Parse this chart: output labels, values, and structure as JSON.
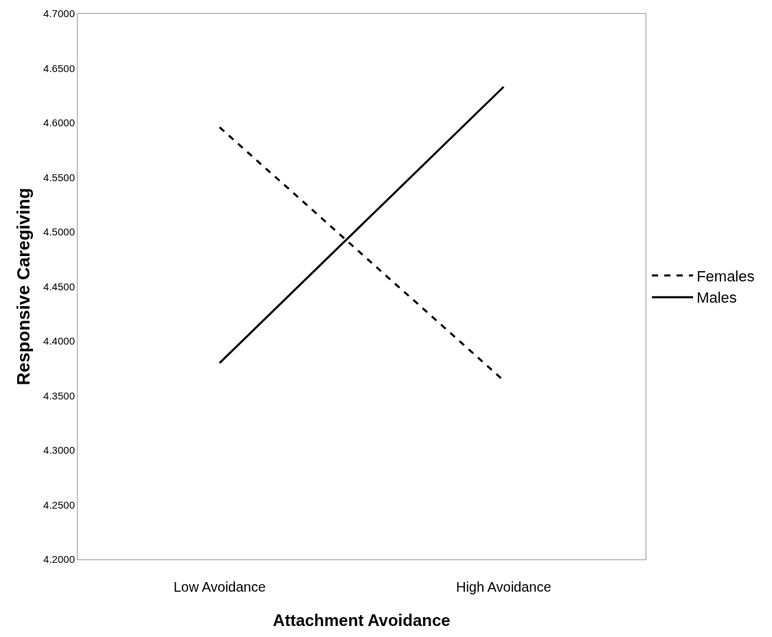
{
  "chart_data": {
    "type": "line",
    "xlabel": "Attachment Avoidance",
    "ylabel": "Responsive Caregiving",
    "categories": [
      "Low Avoidance",
      "High Avoidance"
    ],
    "series": [
      {
        "name": "Females",
        "color": "#000000",
        "line_style": "dashed",
        "values": [
          4.596,
          4.364
        ]
      },
      {
        "name": "Males",
        "color": "#000000",
        "line_style": "solid",
        "values": [
          4.38,
          4.633
        ]
      }
    ],
    "ylim": [
      4.2,
      4.7
    ],
    "yticks": [
      {
        "value": 4.2,
        "label": "4.2000"
      },
      {
        "value": 4.25,
        "label": "4.2500"
      },
      {
        "value": 4.3,
        "label": "4.3000"
      },
      {
        "value": 4.35,
        "label": "4.3500"
      },
      {
        "value": 4.4,
        "label": "4.4000"
      },
      {
        "value": 4.45,
        "label": "4.4500"
      },
      {
        "value": 4.5,
        "label": "4.5000"
      },
      {
        "value": 4.55,
        "label": "4.5500"
      },
      {
        "value": 4.6,
        "label": "4.6000"
      },
      {
        "value": 4.65,
        "label": "4.6500"
      },
      {
        "value": 4.7,
        "label": "4.7000"
      }
    ],
    "grid": false,
    "legend": "right",
    "marker": "none"
  }
}
